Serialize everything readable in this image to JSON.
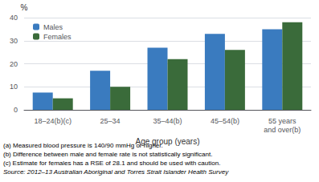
{
  "chart_data": {
    "type": "bar",
    "categories": [
      "18–24(b)(c)",
      "25–34",
      "35–44(b)",
      "45–54(b)",
      "55 years\nand over(b)"
    ],
    "series": [
      {
        "name": "Males",
        "color": "#3a7bbf",
        "values": [
          7.5,
          17,
          27,
          33,
          35
        ]
      },
      {
        "name": "Females",
        "color": "#3a6b3a",
        "values": [
          5,
          10,
          22,
          26,
          38
        ]
      }
    ],
    "ylabel": "%",
    "xlabel": "Age group (years)",
    "ylim": [
      0,
      40
    ],
    "yticks": [
      0,
      10,
      20,
      30,
      40
    ],
    "grid": true,
    "legend": "upper left",
    "annotations": [
      "(a) Measured blood pressure is 140/90 mmHg or higher.",
      "(b) Difference between male and female rate is not statistically significant.",
      "(c) Estimate for females has a RSE of 28.1 and should be used with caution.",
      "Source: 2012–13 Australian Aboriginal and Torres Strait Islander Health Survey"
    ]
  }
}
